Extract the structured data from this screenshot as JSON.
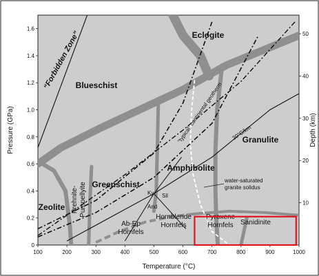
{
  "chart_data": {
    "type": "diagram",
    "xlabel": "Temperature (°C)",
    "ylabel_left": "Pressure (GPa)",
    "ylabel_right": "Depth (km)",
    "xlim": [
      100,
      1000
    ],
    "ylim": [
      0,
      1.7
    ],
    "x_ticks": [
      "100",
      "200",
      "300",
      "400",
      "500",
      "600",
      "700",
      "800",
      "900",
      "1000"
    ],
    "y_ticks": [
      "0",
      "0.2",
      "0.4",
      "0.6",
      "0.8",
      "1.0",
      "1.2",
      "1.4",
      "1.6"
    ],
    "depth_ticks": [
      "10",
      "20",
      "30",
      "40",
      "50"
    ],
    "depth_per_gpa_km": 32,
    "facies": {
      "eclogite": "Eclogite",
      "blueschist": "Blueschist",
      "granulite": "Granulite",
      "amphibolite": "Amphibolite",
      "greenschist": "Greenschist",
      "zeolite": "Zeolite",
      "prehnite": "Prehnite-",
      "pumpellyite": "Pumpellyite",
      "abep": "Ab-Ep",
      "abep_hornfels": "Hornfels",
      "hornblende": "Hornblende",
      "hornblende_hornfels": "Hornfels",
      "pyroxene": "Pyroxene",
      "pyroxene_hornfels": "Hornfels",
      "sanidinite": "Sanidinite"
    },
    "annotations": {
      "forbidden": "“Forbidden Zone”",
      "geotherm": "“typical” continental geotherm",
      "gradient": "30°C/km",
      "solidus_1": "water-saturated",
      "solidus_2": "granite solidus",
      "ky": "Ky",
      "sil": "Sil",
      "and": "And"
    },
    "colors": {
      "background": "#cdcdcd",
      "boundary": "#8f8f8f",
      "highlight": "#e0141e",
      "text": "#111111"
    },
    "highlight_region": {
      "x_range": [
        640,
        990
      ],
      "y_range": [
        0,
        0.21
      ]
    },
    "lines": {
      "geotherm": [
        [
          100,
          0.12
        ],
        [
          300,
          0.33
        ],
        [
          500,
          0.68
        ],
        [
          600,
          1.05
        ],
        [
          700,
          1.65
        ]
      ],
      "geotherm_2": [
        [
          100,
          0.06
        ],
        [
          300,
          0.24
        ],
        [
          500,
          0.5
        ],
        [
          700,
          0.9
        ],
        [
          860,
          1.55
        ]
      ],
      "gradient_30": [
        [
          200,
          0.03
        ],
        [
          500,
          0.38
        ],
        [
          700,
          0.65
        ],
        [
          900,
          1.0
        ],
        [
          1000,
          1.12
        ]
      ],
      "steep_dashdot": [
        [
          100,
          0.07
        ],
        [
          400,
          0.52
        ],
        [
          600,
          0.85
        ],
        [
          800,
          1.21
        ],
        [
          990,
          1.66
        ]
      ],
      "forbidden": [
        [
          100,
          0.72
        ],
        [
          270,
          1.7
        ]
      ],
      "solidus": [
        [
          640,
          1.22
        ],
        [
          630,
          1.0
        ],
        [
          625,
          0.75
        ],
        [
          635,
          0.52
        ],
        [
          660,
          0.3
        ],
        [
          700,
          0.1
        ],
        [
          760,
          0.0
        ]
      ]
    },
    "boundaries": {
      "blueschist_eclogite": [
        [
          565,
          1.7
        ],
        [
          600,
          1.55
        ],
        [
          660,
          1.4
        ],
        [
          690,
          1.25
        ]
      ],
      "blueschist_lower": [
        [
          100,
          0.6
        ],
        [
          180,
          0.72
        ],
        [
          320,
          0.87
        ],
        [
          480,
          1.03
        ],
        [
          600,
          1.15
        ],
        [
          750,
          1.33
        ],
        [
          1000,
          1.55
        ]
      ],
      "zeolite_left": [
        [
          100,
          0.62
        ],
        [
          155,
          0.55
        ],
        [
          195,
          0.4
        ],
        [
          210,
          0.15
        ],
        [
          215,
          0.0
        ]
      ],
      "prehnite_right": [
        [
          285,
          0.58
        ],
        [
          280,
          0.35
        ],
        [
          275,
          0.0
        ]
      ],
      "greenschist_amph": [
        [
          515,
          1.05
        ],
        [
          512,
          0.75
        ],
        [
          508,
          0.4
        ],
        [
          500,
          0.25
        ]
      ],
      "amph_granulite": [
        [
          735,
          1.33
        ],
        [
          718,
          1.0
        ],
        [
          712,
          0.7
        ],
        [
          712,
          0.4
        ],
        [
          715,
          0.18
        ],
        [
          720,
          0.0
        ]
      ],
      "sanidinite_left": [
        [
          820,
          0.2
        ],
        [
          810,
          0.1
        ],
        [
          800,
          0.0
        ]
      ],
      "contact_dashed": [
        [
          300,
          0.02
        ],
        [
          380,
          0.1
        ],
        [
          470,
          0.17
        ],
        [
          560,
          0.21
        ],
        [
          640,
          0.23
        ]
      ],
      "contact_solid": [
        [
          640,
          0.23
        ],
        [
          760,
          0.25
        ],
        [
          880,
          0.24
        ],
        [
          1000,
          0.22
        ]
      ]
    },
    "aluminosilicate": {
      "triple_point": [
        500,
        0.38
      ],
      "ky_and": [
        [
          400,
          0.03
        ],
        [
          500,
          0.38
        ]
      ],
      "ky_sil": [
        [
          500,
          0.38
        ],
        [
          595,
          0.65
        ]
      ],
      "and_sil": [
        [
          500,
          0.38
        ],
        [
          610,
          0.12
        ]
      ]
    }
  }
}
